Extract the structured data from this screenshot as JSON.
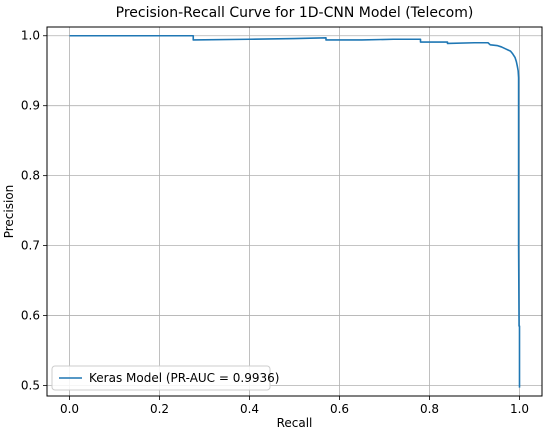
{
  "chart_data": {
    "type": "line",
    "title": "Precision-Recall Curve for 1D-CNN Model (Telecom)",
    "xlabel": "Recall",
    "ylabel": "Precision",
    "xlim": [
      -0.05,
      1.05
    ],
    "ylim": [
      0.485,
      1.0125
    ],
    "xticks": [
      0.0,
      0.2,
      0.4,
      0.6,
      0.8,
      1.0
    ],
    "xtick_labels": [
      "0.0",
      "0.2",
      "0.4",
      "0.6",
      "0.8",
      "1.0"
    ],
    "yticks": [
      0.5,
      0.6,
      0.7,
      0.8,
      0.9,
      1.0
    ],
    "ytick_labels": [
      "0.5",
      "0.6",
      "0.7",
      "0.8",
      "0.9",
      "1.0"
    ],
    "grid": true,
    "legend_position": "lower-left",
    "series": [
      {
        "name": "Keras Model (PR-AUC = 0.9936)",
        "color": "#1f77b4",
        "x": [
          0.0,
          0.275,
          0.275,
          0.4,
          0.5,
          0.57,
          0.57,
          0.65,
          0.72,
          0.78,
          0.78,
          0.84,
          0.84,
          0.9,
          0.93,
          0.935,
          0.95,
          0.96,
          0.97,
          0.98,
          0.985,
          0.99,
          0.993,
          0.995,
          0.997,
          0.998,
          0.998,
          0.999,
          0.999,
          1.0,
          1.0
        ],
        "y": [
          1.0,
          1.0,
          0.994,
          0.995,
          0.996,
          0.997,
          0.994,
          0.994,
          0.995,
          0.995,
          0.991,
          0.991,
          0.989,
          0.99,
          0.99,
          0.987,
          0.986,
          0.984,
          0.981,
          0.978,
          0.974,
          0.969,
          0.963,
          0.957,
          0.95,
          0.94,
          0.7,
          0.59,
          0.585,
          0.585,
          0.497
        ]
      }
    ]
  }
}
